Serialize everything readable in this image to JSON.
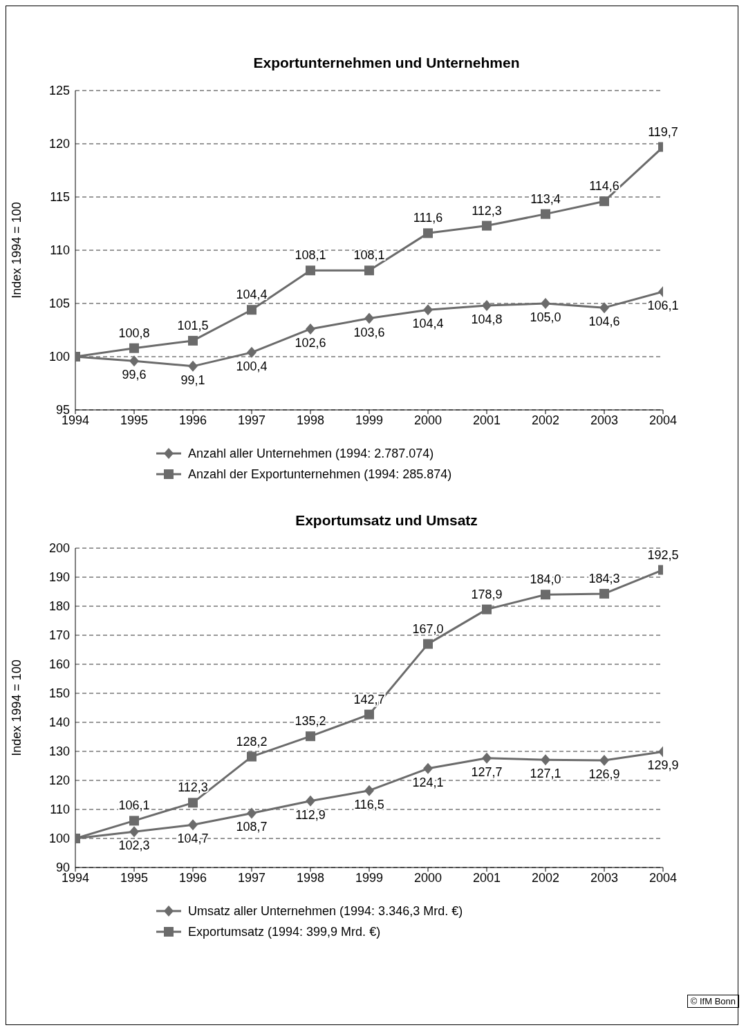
{
  "chart_data": [
    {
      "type": "line",
      "title": "Exportunternehmen und Unternehmen",
      "ylabel": "Index 1994 = 100",
      "x": [
        1994,
        1995,
        1996,
        1997,
        1998,
        1999,
        2000,
        2001,
        2002,
        2003,
        2004
      ],
      "xlim": [
        1994,
        2004
      ],
      "xticks": [
        1994,
        1995,
        1996,
        1997,
        1998,
        1999,
        2000,
        2001,
        2002,
        2003,
        2004
      ],
      "ylim": [
        95,
        125
      ],
      "yticks": [
        95,
        100,
        105,
        110,
        115,
        120,
        125
      ],
      "grid": "y",
      "legend": "bottom",
      "line_style": "solid",
      "series": [
        {
          "name": "Anzahl aller Unternehmen (1994: 2.787.074)",
          "color": "#6b6b6b",
          "marker": "diamond",
          "values": [
            100,
            99.6,
            99.1,
            100.4,
            102.6,
            103.6,
            104.4,
            104.8,
            105.0,
            104.6,
            106.1
          ],
          "value_labels": [
            null,
            "99,6",
            "99,1",
            "100,4",
            "102,6",
            "103,6",
            "104,4",
            "104,8",
            "105,0",
            "104,6",
            "106,1"
          ]
        },
        {
          "name": "Anzahl der Exportunternehmen (1994: 285.874)",
          "color": "#6b6b6b",
          "marker": "square",
          "values": [
            100,
            100.8,
            101.5,
            104.4,
            108.1,
            108.1,
            111.6,
            112.3,
            113.4,
            114.6,
            119.7
          ],
          "value_labels": [
            null,
            "100,8",
            "101,5",
            "104,4",
            "108,1",
            "108,1",
            "111,6",
            "112,3",
            "113,4",
            "114,6",
            "119,7"
          ]
        }
      ]
    },
    {
      "type": "line",
      "title": "Exportumsatz und Umsatz",
      "ylabel": "Index 1994 = 100",
      "x": [
        1994,
        1995,
        1996,
        1997,
        1998,
        1999,
        2000,
        2001,
        2002,
        2003,
        2004
      ],
      "xlim": [
        1994,
        2004
      ],
      "xticks": [
        1994,
        1995,
        1996,
        1997,
        1998,
        1999,
        2000,
        2001,
        2002,
        2003,
        2004
      ],
      "ylim": [
        90,
        200
      ],
      "yticks": [
        90,
        100,
        110,
        120,
        130,
        140,
        150,
        160,
        170,
        180,
        190,
        200
      ],
      "grid": "y",
      "legend": "bottom",
      "line_style": "solid",
      "annotations": [
        "© IfM Bonn"
      ],
      "series": [
        {
          "name": "Umsatz aller Unternehmen (1994: 3.346,3 Mrd. €)",
          "color": "#6b6b6b",
          "marker": "diamond",
          "values": [
            100,
            102.3,
            104.7,
            108.7,
            112.9,
            116.5,
            124.1,
            127.7,
            127.1,
            126.9,
            129.9
          ],
          "value_labels": [
            null,
            "102,3",
            "104,7",
            "108,7",
            "112,9",
            "116,5",
            "124,1",
            "127,7",
            "127,1",
            "126,9",
            "129,9"
          ]
        },
        {
          "name": "Exportumsatz (1994: 399,9 Mrd. €)",
          "color": "#6b6b6b",
          "marker": "square",
          "values": [
            100,
            106.1,
            112.3,
            128.2,
            135.2,
            142.7,
            167.0,
            178.9,
            184.0,
            184.3,
            192.5
          ],
          "value_labels": [
            null,
            "106,1",
            "112,3",
            "128,2",
            "135,2",
            "142,7",
            "167,0",
            "178,9",
            "184,0",
            "184,3",
            "192,5"
          ]
        }
      ]
    }
  ]
}
